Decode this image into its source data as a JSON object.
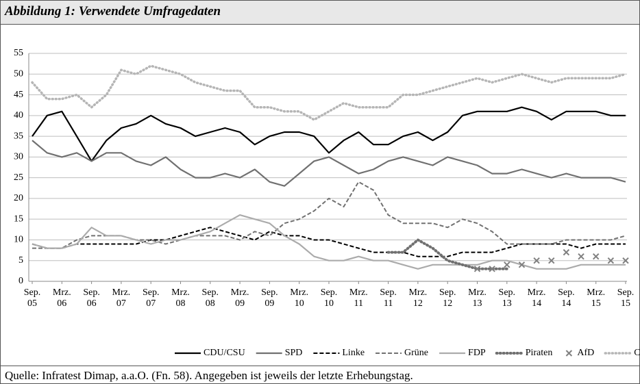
{
  "figure_title": "Abbildung 1: Verwendete Umfragedaten",
  "source": "Quelle: Infratest Dimap, a.a.O. (Fn. 58). Angegeben ist jeweils der letzte Erhebungstag.",
  "chart_data": {
    "type": "line",
    "categories": [
      "Sep.\n05",
      null,
      "Mrz.\n06",
      null,
      "Sep.\n06",
      null,
      "Mrz.\n07",
      null,
      "Sep.\n07",
      null,
      "Mrz.\n08",
      null,
      "Sep.\n08",
      null,
      "Mrz.\n09",
      null,
      "Sep.\n09",
      null,
      "Mrz.\n10",
      null,
      "Sep.\n10",
      null,
      "Mrz.\n11",
      null,
      "Sep.\n11",
      null,
      "Mrz.\n12",
      null,
      "Sep.\n12",
      null,
      "Mrz.\n13",
      null,
      "Sep.\n13",
      null,
      "Mrz.\n14",
      null,
      "Sep.\n14",
      null,
      "Mrz.\n15",
      null,
      "Sep.\n15"
    ],
    "ylim": [
      0,
      55
    ],
    "yticks": [
      0,
      5,
      10,
      15,
      20,
      25,
      30,
      35,
      40,
      45,
      50,
      55
    ],
    "grid": true,
    "series": [
      {
        "name": "CDU/CSU",
        "color": "#000000",
        "style": "solid",
        "values": [
          35,
          40,
          41,
          35,
          29,
          34,
          37,
          38,
          40,
          38,
          37,
          35,
          36,
          37,
          36,
          33,
          35,
          36,
          36,
          35,
          31,
          34,
          36,
          33,
          33,
          35,
          36,
          34,
          36,
          40,
          41,
          41,
          41,
          42,
          41,
          39,
          41,
          41,
          41,
          40,
          40
        ]
      },
      {
        "name": "SPD",
        "color": "#707070",
        "style": "solid",
        "values": [
          34,
          31,
          30,
          31,
          29,
          31,
          31,
          29,
          28,
          30,
          27,
          25,
          25,
          26,
          25,
          27,
          24,
          23,
          26,
          29,
          30,
          28,
          26,
          27,
          29,
          30,
          29,
          28,
          30,
          29,
          28,
          26,
          26,
          27,
          26,
          25,
          26,
          25,
          25,
          25,
          24
        ]
      },
      {
        "name": "Linke",
        "color": "#000000",
        "style": "dashed",
        "values": [
          9,
          8,
          8,
          9,
          9,
          9,
          9,
          9,
          10,
          10,
          11,
          12,
          13,
          12,
          11,
          10,
          12,
          11,
          11,
          10,
          10,
          9,
          8,
          7,
          7,
          7,
          6,
          6,
          6,
          7,
          7,
          7,
          8,
          9,
          9,
          9,
          9,
          8,
          9,
          9,
          9
        ]
      },
      {
        "name": "Grüne",
        "color": "#707070",
        "style": "dashed",
        "values": [
          8,
          8,
          8,
          10,
          11,
          11,
          11,
          10,
          10,
          9,
          10,
          11,
          11,
          11,
          10,
          12,
          11,
          14,
          15,
          17,
          20,
          18,
          24,
          22,
          16,
          14,
          14,
          14,
          13,
          15,
          14,
          12,
          9,
          9,
          9,
          9,
          10,
          10,
          10,
          10,
          11
        ]
      },
      {
        "name": "FDP",
        "color": "#ababab",
        "style": "solid",
        "values": [
          9,
          8,
          8,
          9,
          13,
          11,
          11,
          10,
          9,
          10,
          10,
          11,
          12,
          14,
          16,
          15,
          14,
          11,
          9,
          6,
          5,
          5,
          6,
          5,
          5,
          4,
          3,
          4,
          4,
          4,
          4,
          5,
          5,
          4,
          3,
          3,
          3,
          4,
          4,
          4,
          4
        ]
      },
      {
        "name": "Piraten",
        "color": "#707070",
        "style": "dotted",
        "values": [
          null,
          null,
          null,
          null,
          null,
          null,
          null,
          null,
          null,
          null,
          null,
          null,
          null,
          null,
          null,
          null,
          null,
          null,
          null,
          null,
          null,
          null,
          null,
          null,
          7,
          7,
          10,
          8,
          5,
          4,
          3,
          3,
          3,
          null,
          null,
          null,
          null,
          null,
          null,
          null,
          null
        ]
      },
      {
        "name": "AfD",
        "color": "#808080",
        "style": "marker",
        "values": [
          null,
          null,
          null,
          null,
          null,
          null,
          null,
          null,
          null,
          null,
          null,
          null,
          null,
          null,
          null,
          null,
          null,
          null,
          null,
          null,
          null,
          null,
          null,
          null,
          null,
          null,
          null,
          null,
          null,
          null,
          3,
          3,
          4,
          4,
          5,
          5,
          7,
          6,
          6,
          5,
          5
        ]
      },
      {
        "name": "CSU (Bayern)",
        "color": "#b5b5b5",
        "style": "lightdotted",
        "values": [
          48,
          44,
          44,
          45,
          42,
          45,
          51,
          50,
          52,
          51,
          50,
          48,
          47,
          46,
          46,
          42,
          42,
          41,
          41,
          39,
          41,
          43,
          42,
          42,
          42,
          45,
          45,
          46,
          47,
          48,
          49,
          48,
          49,
          50,
          49,
          48,
          49,
          49,
          49,
          49,
          50
        ]
      }
    ]
  }
}
